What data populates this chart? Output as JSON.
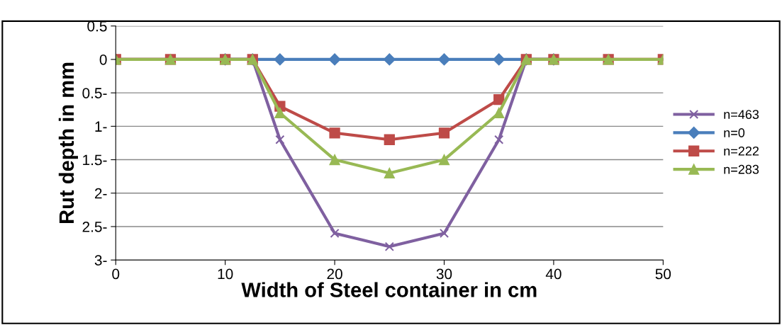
{
  "chart_data": {
    "type": "line",
    "xlabel": "Width of Steel container in cm",
    "ylabel": "Rut depth in mm",
    "x": [
      0,
      5,
      10,
      12.5,
      15,
      20,
      25,
      30,
      35,
      37.5,
      40,
      45,
      50
    ],
    "series": [
      {
        "name": "n=463",
        "color": "#7f60a0",
        "marker": "cross",
        "values": [
          0,
          0,
          0,
          0,
          -1.2,
          -2.6,
          -2.8,
          -2.6,
          -1.2,
          0,
          0,
          null,
          null
        ]
      },
      {
        "name": "n=0",
        "color": "#4a7ebb",
        "marker": "diamond",
        "values": [
          null,
          null,
          0,
          0,
          0,
          0,
          0,
          0,
          0,
          0,
          0,
          null,
          null
        ]
      },
      {
        "name": "n=222",
        "color": "#be4b48",
        "marker": "square",
        "values": [
          0,
          0,
          0,
          0,
          -0.7,
          -1.1,
          -1.2,
          -1.1,
          -0.6,
          0,
          0,
          0,
          0
        ]
      },
      {
        "name": "n=283",
        "color": "#98b954",
        "marker": "triangle",
        "values": [
          0,
          0,
          0,
          0,
          -0.8,
          -1.5,
          -1.7,
          -1.5,
          -0.8,
          0,
          0,
          0,
          0
        ]
      }
    ],
    "xlim": [
      0,
      50
    ],
    "xticks": [
      0,
      10,
      20,
      30,
      40,
      50
    ],
    "ylim": [
      -3,
      0.5
    ],
    "yticks": [
      0.5,
      0,
      {
        "value": -0.5,
        "label": "0.5-"
      },
      {
        "value": -1,
        "label": "1-"
      },
      {
        "value": -1.5,
        "label": "1.5-"
      },
      {
        "value": -2,
        "label": "2-"
      },
      {
        "value": -2.5,
        "label": "2.5-"
      },
      {
        "value": -3,
        "label": "3-"
      }
    ],
    "grid": "y",
    "legend": "right"
  }
}
